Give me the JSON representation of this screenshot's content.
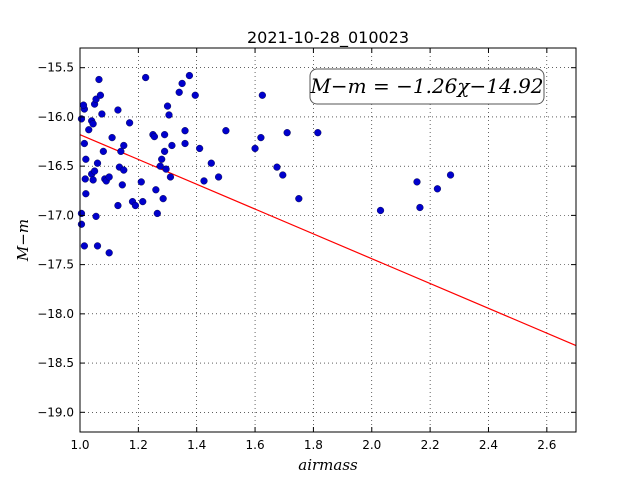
{
  "chart_data": {
    "type": "scatter",
    "title": "2021-10-28_010023",
    "xlabel": "airmass",
    "ylabel": "M−m",
    "xlim": [
      1.0,
      2.7
    ],
    "ylim": [
      -19.2,
      -15.3
    ],
    "y_inverted": true,
    "grid": true,
    "x_ticks": [
      1.0,
      1.2,
      1.4,
      1.6,
      1.8,
      2.0,
      2.2,
      2.4,
      2.6
    ],
    "x_tick_labels": [
      "1.0",
      "1.2",
      "1.4",
      "1.6",
      "1.8",
      "2.0",
      "2.2",
      "2.4",
      "2.6"
    ],
    "y_ticks": [
      -15.5,
      -16.0,
      -16.5,
      -17.0,
      -17.5,
      -18.0,
      -18.5,
      -19.0
    ],
    "y_tick_labels": [
      "−15.5",
      "−16.0",
      "−16.5",
      "−17.0",
      "−17.5",
      "−18.0",
      "−18.5",
      "−19.0"
    ],
    "annotation": "M−m = −1.26χ−14.92",
    "fit_line": {
      "slope": -1.26,
      "intercept": -14.92,
      "color": "#ff0000"
    },
    "point_color": "#0000cc",
    "points": [
      [
        1.005,
        -16.02
      ],
      [
        1.015,
        -15.92
      ],
      [
        1.012,
        -15.88
      ],
      [
        1.015,
        -16.27
      ],
      [
        1.02,
        -16.43
      ],
      [
        1.018,
        -16.63
      ],
      [
        1.02,
        -16.78
      ],
      [
        1.005,
        -16.98
      ],
      [
        1.005,
        -17.09
      ],
      [
        1.015,
        -17.31
      ],
      [
        1.03,
        -16.13
      ],
      [
        1.04,
        -16.04
      ],
      [
        1.045,
        -16.07
      ],
      [
        1.05,
        -15.87
      ],
      [
        1.055,
        -15.82
      ],
      [
        1.065,
        -15.62
      ],
      [
        1.07,
        -15.78
      ],
      [
        1.075,
        -15.97
      ],
      [
        1.04,
        -16.58
      ],
      [
        1.045,
        -16.64
      ],
      [
        1.05,
        -16.55
      ],
      [
        1.06,
        -16.47
      ],
      [
        1.055,
        -17.01
      ],
      [
        1.06,
        -17.31
      ],
      [
        1.08,
        -16.35
      ],
      [
        1.085,
        -16.63
      ],
      [
        1.09,
        -16.65
      ],
      [
        1.1,
        -16.61
      ],
      [
        1.1,
        -17.38
      ],
      [
        1.11,
        -16.21
      ],
      [
        1.13,
        -15.93
      ],
      [
        1.135,
        -16.51
      ],
      [
        1.14,
        -16.35
      ],
      [
        1.145,
        -16.69
      ],
      [
        1.15,
        -16.54
      ],
      [
        1.13,
        -16.9
      ],
      [
        1.15,
        -16.29
      ],
      [
        1.17,
        -16.06
      ],
      [
        1.18,
        -16.86
      ],
      [
        1.19,
        -16.9
      ],
      [
        1.21,
        -16.66
      ],
      [
        1.215,
        -16.86
      ],
      [
        1.225,
        -15.6
      ],
      [
        1.25,
        -16.18
      ],
      [
        1.255,
        -16.2
      ],
      [
        1.26,
        -16.74
      ],
      [
        1.265,
        -16.98
      ],
      [
        1.275,
        -16.5
      ],
      [
        1.28,
        -16.43
      ],
      [
        1.285,
        -16.83
      ],
      [
        1.29,
        -16.18
      ],
      [
        1.29,
        -16.35
      ],
      [
        1.295,
        -16.53
      ],
      [
        1.3,
        -15.89
      ],
      [
        1.305,
        -15.98
      ],
      [
        1.31,
        -16.61
      ],
      [
        1.315,
        -16.29
      ],
      [
        1.34,
        -15.75
      ],
      [
        1.35,
        -15.66
      ],
      [
        1.36,
        -16.27
      ],
      [
        1.36,
        -16.14
      ],
      [
        1.375,
        -15.58
      ],
      [
        1.395,
        -15.78
      ],
      [
        1.41,
        -16.32
      ],
      [
        1.425,
        -16.65
      ],
      [
        1.45,
        -16.47
      ],
      [
        1.475,
        -16.61
      ],
      [
        1.5,
        -16.14
      ],
      [
        1.6,
        -16.32
      ],
      [
        1.62,
        -16.21
      ],
      [
        1.625,
        -15.78
      ],
      [
        1.675,
        -16.51
      ],
      [
        1.695,
        -16.59
      ],
      [
        1.71,
        -16.16
      ],
      [
        1.75,
        -16.83
      ],
      [
        1.815,
        -16.16
      ],
      [
        2.03,
        -16.95
      ],
      [
        2.155,
        -16.66
      ],
      [
        2.165,
        -16.92
      ],
      [
        2.225,
        -16.73
      ],
      [
        2.27,
        -16.59
      ]
    ]
  }
}
